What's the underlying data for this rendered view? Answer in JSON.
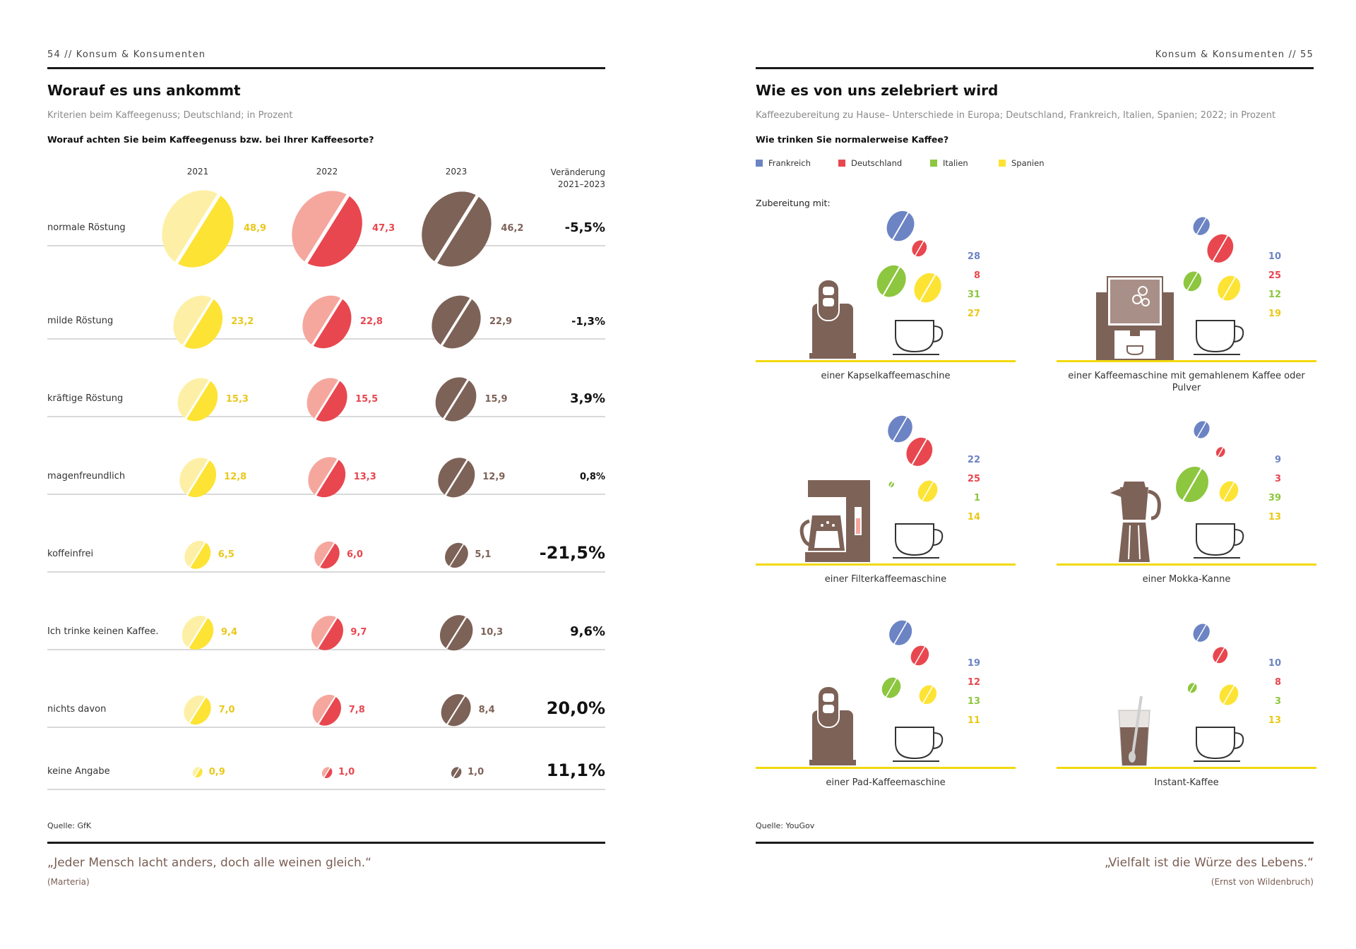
{
  "left": {
    "runhead": "54 // Konsum & Konsumenten",
    "title": "Worauf es uns ankommt",
    "subtitle": "Kriterien beim Kaffeegenuss; Deutschland; in Prozent",
    "question": "Worauf achten Sie beim Kaffeegenuss bzw. bei Ihrer Kaffeesorte?",
    "change_header_1": "Veränderung",
    "change_header_2": "2021–2023",
    "source": "Quelle: GfK",
    "quote": "„Jeder Mensch lacht anders, doch alle weinen gleich.“",
    "quote_author": "(Marteria)"
  },
  "right": {
    "runhead": "Konsum & Konsumenten // 55",
    "title": "Wie es von uns zelebriert wird",
    "subtitle": "Kaffeezubereitung zu Hause– Unterschiede in Europa; Deutschland, Frankreich, Italien, Spanien; 2022; in Prozent",
    "question": "Wie trinken Sie normalerweise Kaffee?",
    "zubereitung_label": "Zubereitung mit:",
    "source": "Quelle: YouGov",
    "quote": "„Vielfalt ist die Würze des Lebens.“",
    "quote_author": "(Ernst von Wildenbruch)"
  },
  "colors": {
    "yellow": "#fde334",
    "yellow_light": "#fdf0a6",
    "red": "#e8474f",
    "red_light": "#f5a79e",
    "brown": "#7d6258",
    "blue": "#6c84c4",
    "green": "#8dc63f",
    "gold_line": "#f2d90c",
    "machine": "#7d6258"
  },
  "chart_data": [
    {
      "type": "bubble",
      "title": "Worauf es uns ankommt",
      "categories": [
        "normale Röstung",
        "milde Röstung",
        "kräftige Röstung",
        "magenfreundlich",
        "koffeinfrei",
        "Ich trinke keinen Kaffee.",
        "nichts davon",
        "keine Angabe"
      ],
      "series": [
        {
          "name": "2021",
          "values": [
            48.9,
            23.2,
            15.3,
            12.8,
            6.5,
            9.4,
            7.0,
            0.9
          ],
          "labels": [
            "48,9",
            "23,2",
            "15,3",
            "12,8",
            "6,5",
            "9,4",
            "7,0",
            "0,9"
          ]
        },
        {
          "name": "2022",
          "values": [
            47.3,
            22.8,
            15.5,
            13.3,
            6.0,
            9.7,
            7.8,
            1.0
          ],
          "labels": [
            "47,3",
            "22,8",
            "15,5",
            "13,3",
            "6,0",
            "9,7",
            "7,8",
            "1,0"
          ]
        },
        {
          "name": "2023",
          "values": [
            46.2,
            22.9,
            15.9,
            12.9,
            5.1,
            10.3,
            8.4,
            1.0
          ],
          "labels": [
            "46,2",
            "22,9",
            "15,9",
            "12,9",
            "5,1",
            "10,3",
            "8,4",
            "1,0"
          ]
        }
      ],
      "change_2021_2023": [
        "-5,5%",
        "-1,3%",
        "3,9%",
        "0,8%",
        "-21,5%",
        "9,6%",
        "20,0%",
        "11,1%"
      ],
      "change_values": [
        -5.5,
        -1.3,
        3.9,
        0.8,
        -21.5,
        9.6,
        20.0,
        11.1
      ],
      "change_size": [
        "l",
        "s",
        "l",
        "xs",
        "xl",
        "l",
        "xl",
        "xl"
      ]
    },
    {
      "type": "bubble",
      "title": "Wie es von uns zelebriert wird",
      "legend": [
        "Frankreich",
        "Deutschland",
        "Italien",
        "Spanien"
      ],
      "panels": [
        {
          "label": "einer Kapselkaffeemaschine",
          "icon": "capsule-machine",
          "values": [
            28,
            8,
            31,
            27
          ]
        },
        {
          "label": "einer Kaffeemaschine mit gemahlenem Kaffee oder Pulver",
          "icon": "espresso-machine",
          "values": [
            10,
            25,
            12,
            19
          ]
        },
        {
          "label": "einer Filterkaffeemaschine",
          "icon": "filter-machine",
          "values": [
            22,
            25,
            1,
            14
          ]
        },
        {
          "label": "einer Mokka-Kanne",
          "icon": "moka-pot",
          "values": [
            9,
            3,
            39,
            13
          ]
        },
        {
          "label": "einer Pad-Kaffeemaschine",
          "icon": "pad-machine",
          "values": [
            19,
            12,
            13,
            11
          ]
        },
        {
          "label": "Instant-Kaffee",
          "icon": "instant-glass",
          "values": [
            10,
            8,
            3,
            13
          ]
        }
      ]
    }
  ]
}
